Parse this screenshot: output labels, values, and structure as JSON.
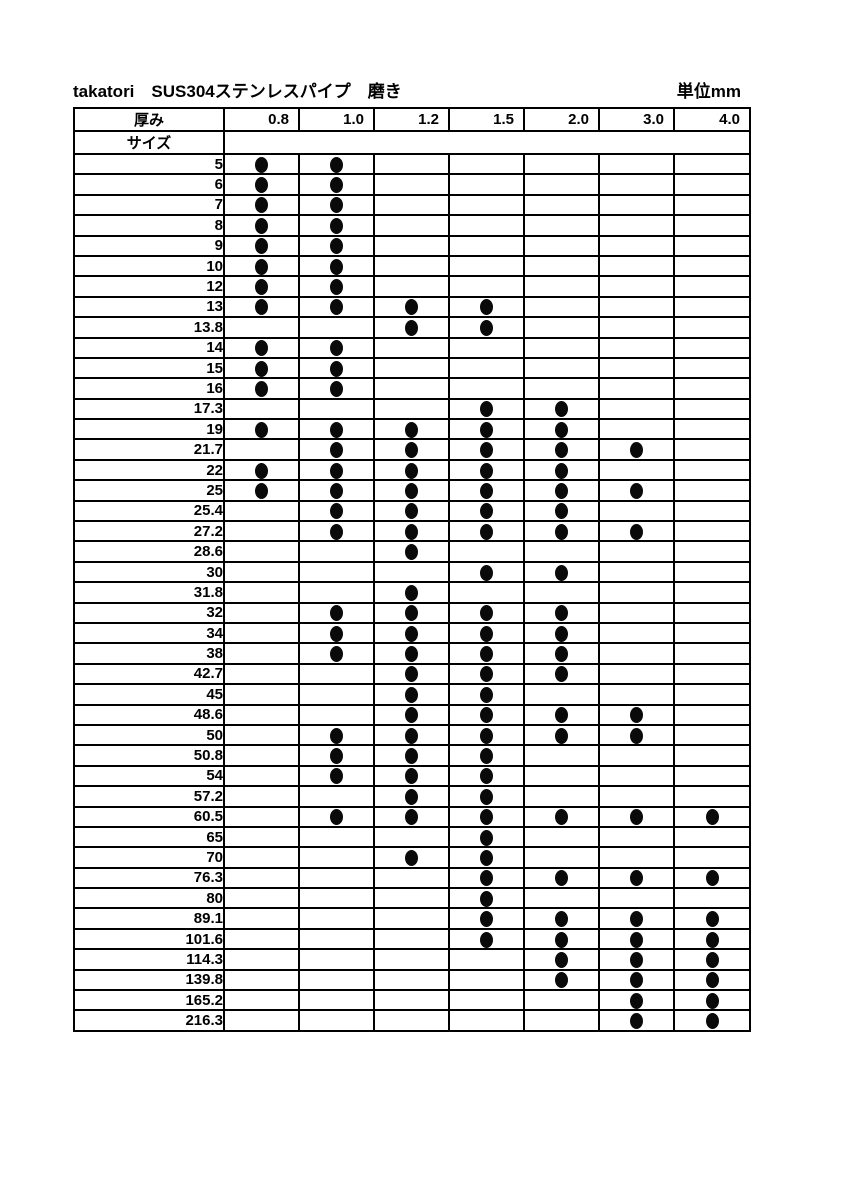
{
  "header": {
    "title": "takatori　SUS304ステンレスパイプ　磨き",
    "unit_label": "単位mm"
  },
  "table": {
    "thickness_label": "厚み",
    "size_label": "サイズ",
    "thickness_columns": [
      "0.8",
      "1.0",
      "1.2",
      "1.5",
      "2.0",
      "3.0",
      "4.0"
    ],
    "rows": [
      {
        "size": "5",
        "dots": [
          1,
          1,
          0,
          0,
          0,
          0,
          0
        ]
      },
      {
        "size": "6",
        "dots": [
          1,
          1,
          0,
          0,
          0,
          0,
          0
        ]
      },
      {
        "size": "7",
        "dots": [
          1,
          1,
          0,
          0,
          0,
          0,
          0
        ]
      },
      {
        "size": "8",
        "dots": [
          1,
          1,
          0,
          0,
          0,
          0,
          0
        ]
      },
      {
        "size": "9",
        "dots": [
          1,
          1,
          0,
          0,
          0,
          0,
          0
        ]
      },
      {
        "size": "10",
        "dots": [
          1,
          1,
          0,
          0,
          0,
          0,
          0
        ]
      },
      {
        "size": "12",
        "dots": [
          1,
          1,
          0,
          0,
          0,
          0,
          0
        ]
      },
      {
        "size": "13",
        "dots": [
          1,
          1,
          1,
          1,
          0,
          0,
          0
        ]
      },
      {
        "size": "13.8",
        "dots": [
          0,
          0,
          1,
          1,
          0,
          0,
          0
        ]
      },
      {
        "size": "14",
        "dots": [
          1,
          1,
          0,
          0,
          0,
          0,
          0
        ]
      },
      {
        "size": "15",
        "dots": [
          1,
          1,
          0,
          0,
          0,
          0,
          0
        ]
      },
      {
        "size": "16",
        "dots": [
          1,
          1,
          0,
          0,
          0,
          0,
          0
        ]
      },
      {
        "size": "17.3",
        "dots": [
          0,
          0,
          0,
          1,
          1,
          0,
          0
        ]
      },
      {
        "size": "19",
        "dots": [
          1,
          1,
          1,
          1,
          1,
          0,
          0
        ]
      },
      {
        "size": "21.7",
        "dots": [
          0,
          1,
          1,
          1,
          1,
          1,
          0
        ]
      },
      {
        "size": "22",
        "dots": [
          1,
          1,
          1,
          1,
          1,
          0,
          0
        ]
      },
      {
        "size": "25",
        "dots": [
          1,
          1,
          1,
          1,
          1,
          1,
          0
        ]
      },
      {
        "size": "25.4",
        "dots": [
          0,
          1,
          1,
          1,
          1,
          0,
          0
        ]
      },
      {
        "size": "27.2",
        "dots": [
          0,
          1,
          1,
          1,
          1,
          1,
          0
        ]
      },
      {
        "size": "28.6",
        "dots": [
          0,
          0,
          1,
          0,
          0,
          0,
          0
        ]
      },
      {
        "size": "30",
        "dots": [
          0,
          0,
          0,
          1,
          1,
          0,
          0
        ]
      },
      {
        "size": "31.8",
        "dots": [
          0,
          0,
          1,
          0,
          0,
          0,
          0
        ]
      },
      {
        "size": "32",
        "dots": [
          0,
          1,
          1,
          1,
          1,
          0,
          0
        ]
      },
      {
        "size": "34",
        "dots": [
          0,
          1,
          1,
          1,
          1,
          0,
          0
        ]
      },
      {
        "size": "38",
        "dots": [
          0,
          1,
          1,
          1,
          1,
          0,
          0
        ]
      },
      {
        "size": "42.7",
        "dots": [
          0,
          0,
          1,
          1,
          1,
          0,
          0
        ]
      },
      {
        "size": "45",
        "dots": [
          0,
          0,
          1,
          1,
          0,
          0,
          0
        ]
      },
      {
        "size": "48.6",
        "dots": [
          0,
          0,
          1,
          1,
          1,
          1,
          0
        ]
      },
      {
        "size": "50",
        "dots": [
          0,
          1,
          1,
          1,
          1,
          1,
          0
        ]
      },
      {
        "size": "50.8",
        "dots": [
          0,
          1,
          1,
          1,
          0,
          0,
          0
        ]
      },
      {
        "size": "54",
        "dots": [
          0,
          1,
          1,
          1,
          0,
          0,
          0
        ]
      },
      {
        "size": "57.2",
        "dots": [
          0,
          0,
          1,
          1,
          0,
          0,
          0
        ]
      },
      {
        "size": "60.5",
        "dots": [
          0,
          1,
          1,
          1,
          1,
          1,
          1
        ]
      },
      {
        "size": "65",
        "dots": [
          0,
          0,
          0,
          1,
          0,
          0,
          0
        ]
      },
      {
        "size": "70",
        "dots": [
          0,
          0,
          1,
          1,
          0,
          0,
          0
        ]
      },
      {
        "size": "76.3",
        "dots": [
          0,
          0,
          0,
          1,
          1,
          1,
          1
        ]
      },
      {
        "size": "80",
        "dots": [
          0,
          0,
          0,
          1,
          0,
          0,
          0
        ]
      },
      {
        "size": "89.1",
        "dots": [
          0,
          0,
          0,
          1,
          1,
          1,
          1
        ]
      },
      {
        "size": "101.6",
        "dots": [
          0,
          0,
          0,
          1,
          1,
          1,
          1
        ]
      },
      {
        "size": "114.3",
        "dots": [
          0,
          0,
          0,
          0,
          1,
          1,
          1
        ]
      },
      {
        "size": "139.8",
        "dots": [
          0,
          0,
          0,
          0,
          1,
          1,
          1
        ]
      },
      {
        "size": "165.2",
        "dots": [
          0,
          0,
          0,
          0,
          0,
          1,
          1
        ]
      },
      {
        "size": "216.3",
        "dots": [
          0,
          0,
          0,
          0,
          0,
          1,
          1
        ]
      }
    ]
  }
}
